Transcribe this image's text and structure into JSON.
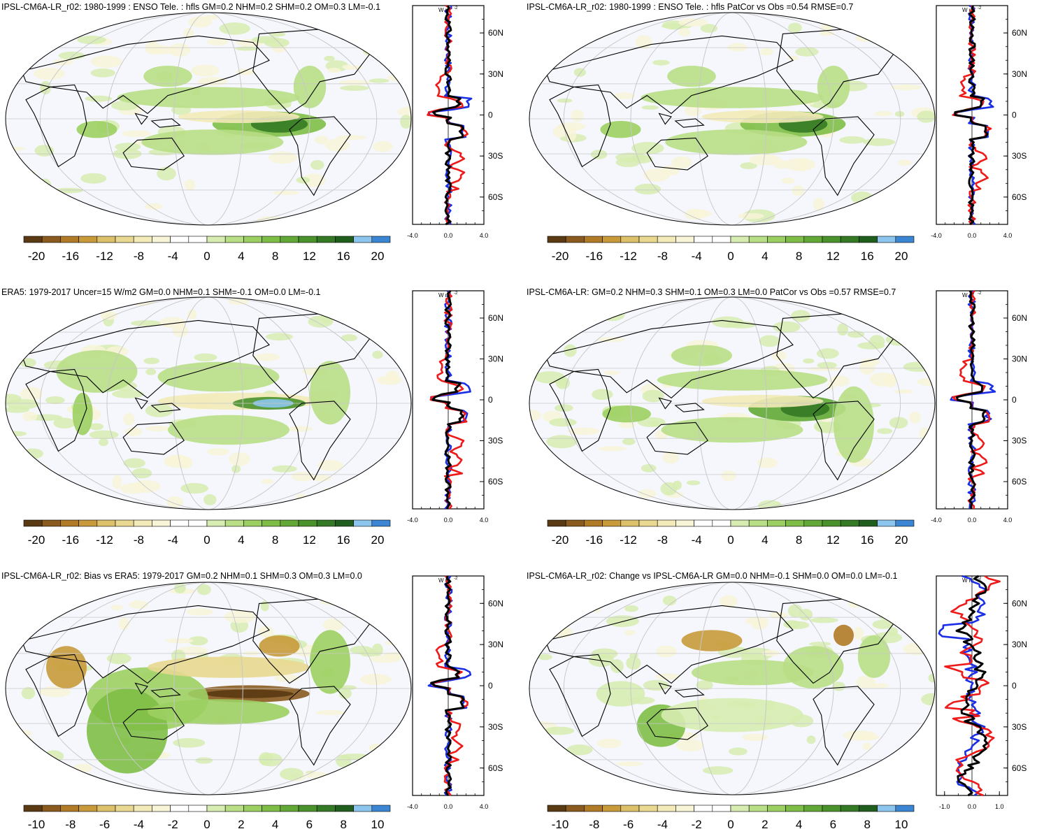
{
  "units": "W m",
  "units_superscript": "-2",
  "lat_ticks": [
    "60N",
    "30N",
    "0",
    "30S",
    "60S"
  ],
  "colors": {
    "ocean_fill": "#f5f7fd",
    "continent": "#000000",
    "obs_line": "#1a2ee6",
    "model_line": "#ee1a1a",
    "mean_line": "#000000"
  },
  "panels": [
    {
      "title": "IPSL-CM6A-LR_r02: 1980-1999 : ENSO Tele. : hfls GM=0.2 NHM=0.2 SHM=0.2 OM=0.3 LM=-0.1",
      "colorbar_labels": [
        "-20",
        "-16",
        "-12",
        "-8",
        "-4",
        "0",
        "4",
        "8",
        "12",
        "16",
        "20"
      ],
      "profile_ticks": [
        "-4.0",
        "0.0",
        "4.0"
      ],
      "profile_range": [
        -4,
        4
      ]
    },
    {
      "title": "IPSL-CM6A-LR_r02: 1980-1999 : ENSO Tele. : hfls PatCor vs Obs =0.54 RMSE=0.7",
      "colorbar_labels": [
        "-20",
        "-16",
        "-12",
        "-8",
        "-4",
        "0",
        "4",
        "8",
        "12",
        "16",
        "20"
      ],
      "profile_ticks": [
        "-4.0",
        "0.0",
        "4.0"
      ],
      "profile_range": [
        -4,
        4
      ]
    },
    {
      "title": "ERA5: 1979-2017 Uncer=15 W/m2 GM=0.0 NHM=0.1 SHM=-0.1 OM=0.0 LM=-0.1",
      "colorbar_labels": [
        "-20",
        "-16",
        "-12",
        "-8",
        "-4",
        "0",
        "4",
        "8",
        "12",
        "16",
        "20"
      ],
      "profile_ticks": [
        "-4.0",
        "0.0",
        "4.0"
      ],
      "profile_range": [
        -4,
        4
      ]
    },
    {
      "title": "IPSL-CM6A-LR: GM=0.2 NHM=0.3 SHM=0.1 OM=0.3 LM=0.0 PatCor vs Obs =0.57 RMSE=0.7",
      "colorbar_labels": [
        "-20",
        "-16",
        "-12",
        "-8",
        "-4",
        "0",
        "4",
        "8",
        "12",
        "16",
        "20"
      ],
      "profile_ticks": [
        "-4.0",
        "0.0",
        "4.0"
      ],
      "profile_range": [
        -4,
        4
      ]
    },
    {
      "title": "IPSL-CM6A-LR_r02: Bias vs ERA5: 1979-2017 GM=0.2 NHM=0.1 SHM=0.3 OM=0.3 LM=0.0",
      "colorbar_labels": [
        "-10",
        "-8",
        "-6",
        "-4",
        "-2",
        "0",
        "2",
        "4",
        "6",
        "8",
        "10"
      ],
      "profile_ticks": [
        "-4.0",
        "0.0",
        "4.0"
      ],
      "profile_range": [
        -4,
        4
      ]
    },
    {
      "title": "IPSL-CM6A-LR_r02: Change vs IPSL-CM6A-LR GM=0.0 NHM=-0.1 SHM=0.0 OM=0.0 LM=-0.1",
      "colorbar_labels": [
        "-10",
        "-8",
        "-6",
        "-4",
        "-2",
        "0",
        "2",
        "4",
        "6",
        "8",
        "10"
      ],
      "profile_ticks": [
        "-1.0",
        "0.0",
        "1.0"
      ],
      "profile_range": [
        -1.3,
        1.3
      ]
    }
  ],
  "colorbar_colors": [
    "#5a3a12",
    "#8a5a1e",
    "#b07a26",
    "#c89a3a",
    "#dcc06a",
    "#e8d890",
    "#f2eab8",
    "#f8f4d8",
    "#ffffff",
    "#ffffff",
    "#d6ecb0",
    "#b8de86",
    "#9ccf62",
    "#7fbe46",
    "#62a836",
    "#4a922c",
    "#347a24",
    "#1f5e1c",
    "#8cc6ee",
    "#3a86d2"
  ]
}
